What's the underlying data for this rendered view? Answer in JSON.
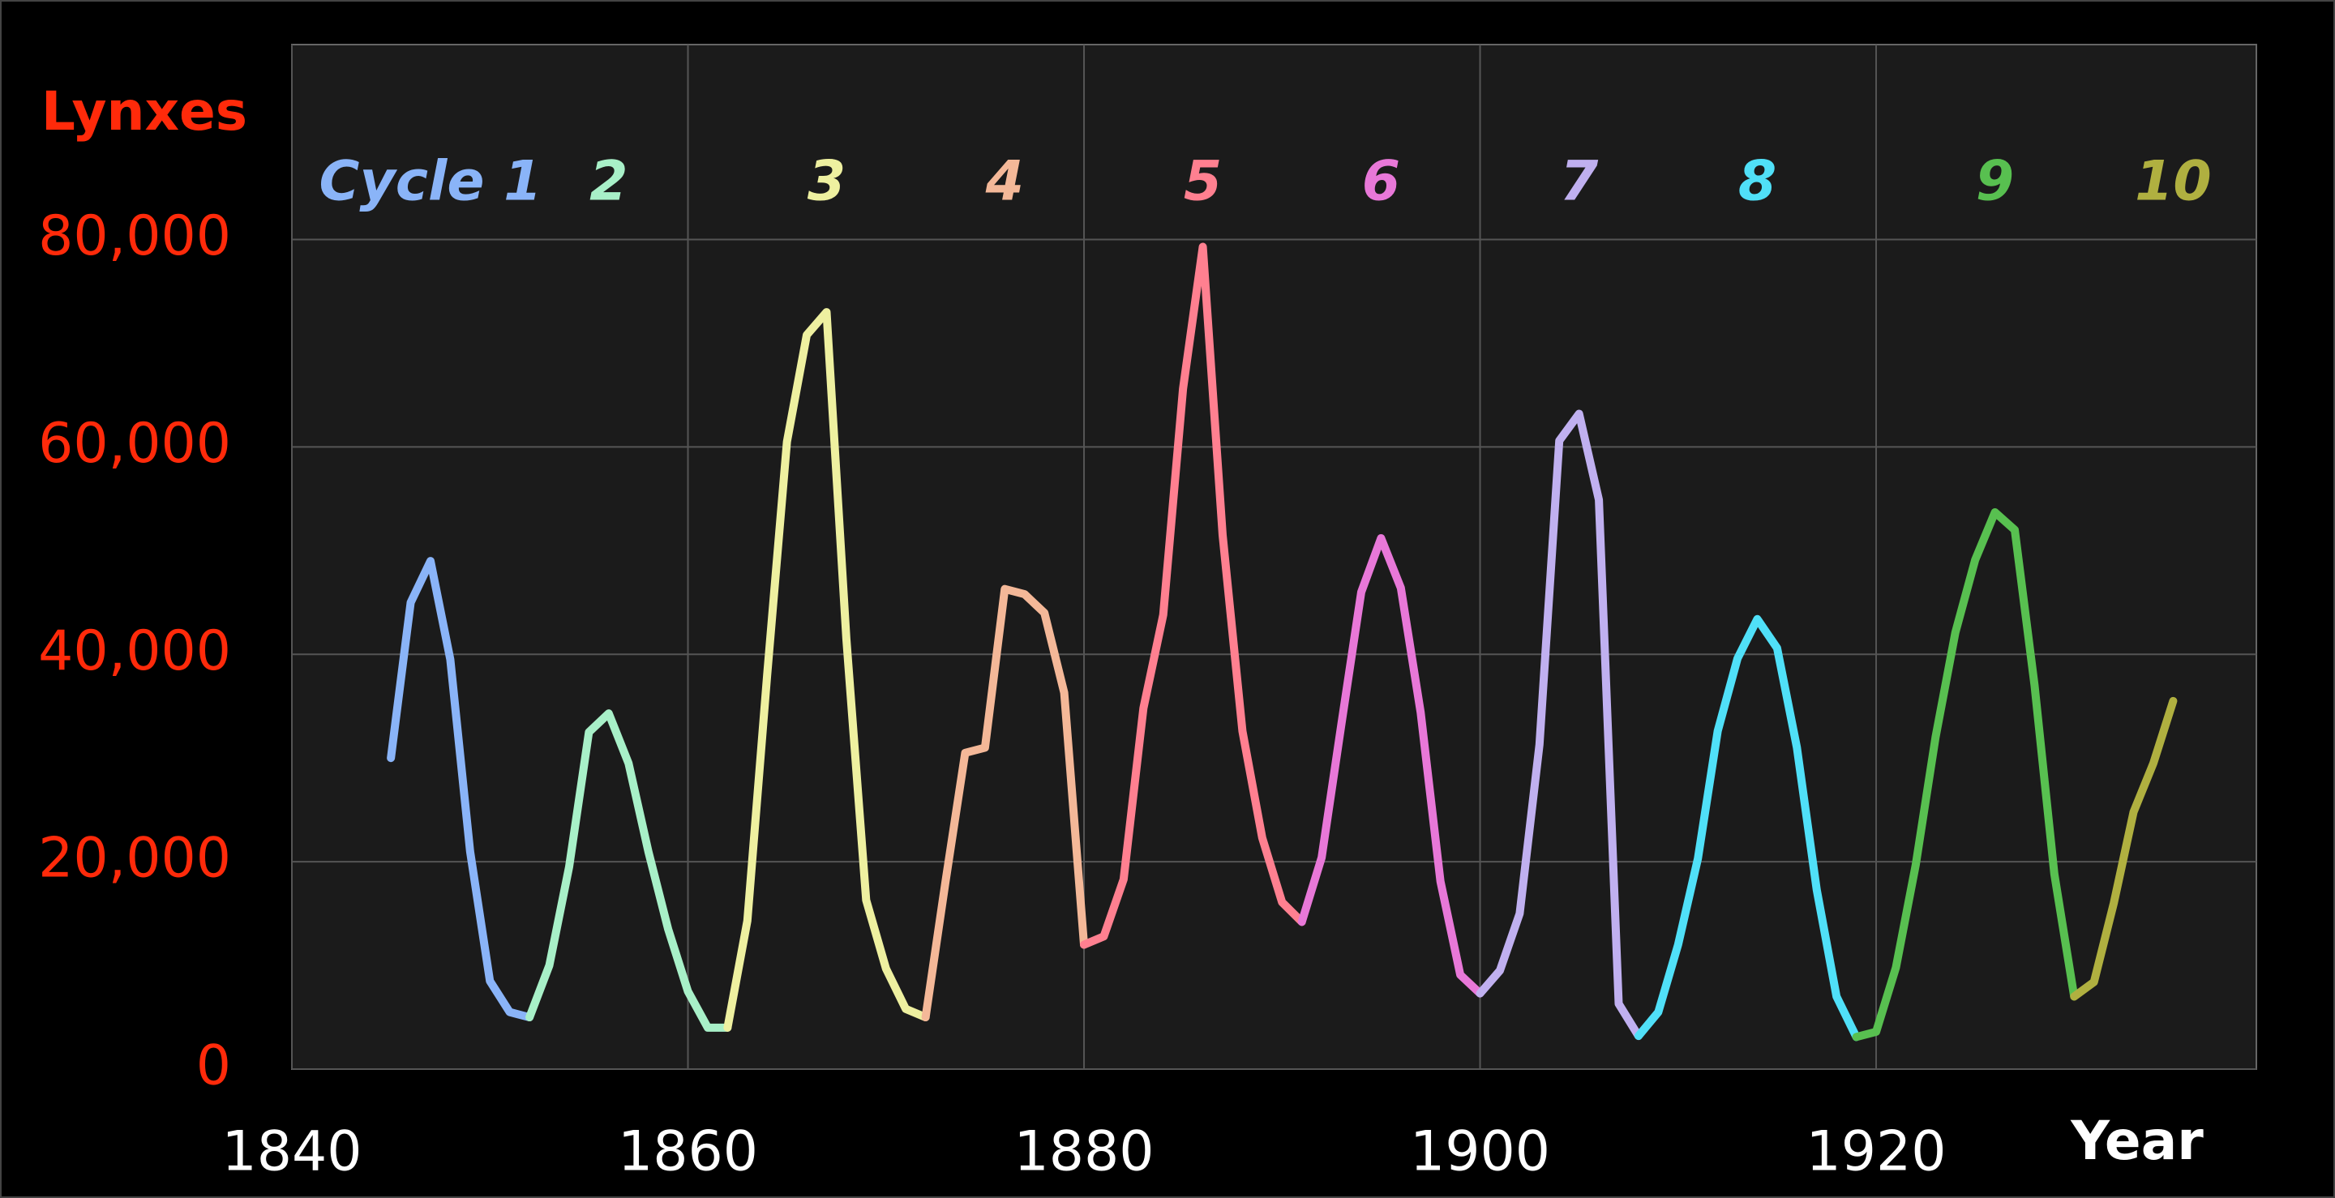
{
  "chart_data": {
    "type": "line",
    "xlabel": "Year",
    "ylabel": "Lynxes",
    "xlim": [
      1840,
      1939.2
    ],
    "xticks": [
      1840,
      1860,
      1880,
      1900,
      1920
    ],
    "ylim": [
      0,
      98800
    ],
    "yticks": [
      0,
      {
        "value": 20000,
        "label": "20,000"
      },
      {
        "value": 40000,
        "label": "40,000"
      },
      {
        "value": 60000,
        "label": "60,000"
      },
      {
        "value": 80000,
        "label": "80,000"
      }
    ],
    "grid": true,
    "series": [
      {
        "name": "Cycle 1",
        "color": "#8ab4f8",
        "x": [
          1845,
          1846,
          1847,
          1848,
          1849,
          1850,
          1851,
          1852
        ],
        "values": [
          30000,
          45000,
          49000,
          39500,
          21000,
          8500,
          5500,
          5000
        ]
      },
      {
        "name": "2",
        "color": "#a8f0c8",
        "x": [
          1852,
          1853,
          1854,
          1855,
          1856,
          1857,
          1858,
          1859,
          1860,
          1861,
          1862
        ],
        "values": [
          5000,
          10000,
          19500,
          32500,
          34300,
          29500,
          21000,
          13500,
          7500,
          4000,
          4000
        ]
      },
      {
        "name": "3",
        "color": "#eef0a0",
        "x": [
          1862,
          1863,
          1864,
          1865,
          1866,
          1867,
          1868,
          1869,
          1870,
          1871,
          1872
        ],
        "values": [
          4000,
          14300,
          38000,
          60500,
          70800,
          73000,
          41500,
          16300,
          9700,
          5800,
          5000
        ]
      },
      {
        "name": "4",
        "color": "#f4b898",
        "x": [
          1872,
          1873,
          1874,
          1875,
          1876,
          1877,
          1878,
          1879,
          1880
        ],
        "values": [
          5000,
          18000,
          30500,
          31000,
          46300,
          45800,
          44000,
          36300,
          12000
        ]
      },
      {
        "name": "5",
        "color": "#ff8090",
        "x": [
          1880,
          1881,
          1882,
          1883,
          1884,
          1885,
          1886,
          1887,
          1888,
          1889,
          1890,
          1891
        ],
        "values": [
          12000,
          12800,
          18300,
          34800,
          43800,
          65600,
          79300,
          51500,
          32600,
          22300,
          16100,
          14200
        ]
      },
      {
        "name": "6",
        "color": "#e878d8",
        "x": [
          1891,
          1892,
          1893,
          1894,
          1895,
          1896,
          1897,
          1898,
          1899,
          1900
        ],
        "values": [
          14200,
          20400,
          33300,
          46000,
          51200,
          46400,
          34400,
          18100,
          9100,
          7300
        ]
      },
      {
        "name": "7",
        "color": "#c0b0f0",
        "x": [
          1900,
          1901,
          1902,
          1903,
          1904,
          1905,
          1906,
          1907,
          1908
        ],
        "values": [
          7300,
          9500,
          15000,
          31300,
          60600,
          63200,
          54900,
          6300,
          3200
        ]
      },
      {
        "name": "8",
        "color": "#50e0f8",
        "x": [
          1908,
          1909,
          1910,
          1911,
          1912,
          1913,
          1914,
          1915,
          1916,
          1917,
          1918,
          1919
        ],
        "values": [
          3200,
          5500,
          12000,
          20300,
          32600,
          39600,
          43400,
          40600,
          31000,
          17300,
          7000,
          3100
        ]
      },
      {
        "name": "9",
        "color": "#58c050",
        "x": [
          1919,
          1920,
          1921,
          1922,
          1923,
          1924,
          1925,
          1926,
          1927,
          1928,
          1929,
          1930
        ],
        "values": [
          3100,
          3600,
          9800,
          19700,
          32000,
          42100,
          49100,
          53700,
          52000,
          37000,
          18800,
          7000
        ]
      },
      {
        "name": "10",
        "color": "#b0b040",
        "x": [
          1930,
          1931,
          1932,
          1933,
          1934,
          1935
        ],
        "values": [
          7000,
          8400,
          16000,
          24800,
          29500,
          35500
        ]
      }
    ]
  }
}
